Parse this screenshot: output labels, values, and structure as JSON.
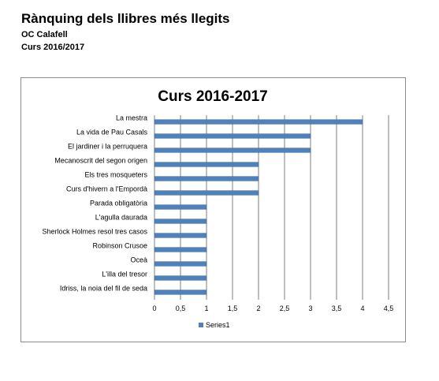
{
  "header": {
    "title": "Rànquing dels llibres més llegits",
    "line1": "OC Calafell",
    "line2": "Curs 2016/2017"
  },
  "colors": {
    "bar": "#4f81bd",
    "bar_edge": "#3a679e",
    "grid": "#7f7f7f"
  },
  "chart_data": {
    "type": "bar",
    "orientation": "horizontal",
    "title": "Curs 2016-2017",
    "categories": [
      "La mestra",
      "La vida de Pau Casals",
      "El jardiner i la perruquera",
      "Mecanoscrit  del segon origen",
      "Els tres mosqueters",
      "Curs d'hivern a l'Empordà",
      "Parada obligatòria",
      "L'agulla daurada",
      "Sherlock Holmes resol tres casos",
      "Robinson Crusoe",
      "Oceà",
      "L'illa del tresor",
      "Idriss, la noia del fil de seda"
    ],
    "series": [
      {
        "name": "Series1",
        "values": [
          4,
          3,
          3,
          2,
          2,
          2,
          1,
          1,
          1,
          1,
          1,
          1,
          1
        ]
      }
    ],
    "xlim": [
      0,
      4.5
    ],
    "xticks": [
      "0",
      "0,5",
      "1",
      "1,5",
      "2",
      "2,5",
      "3",
      "3,5",
      "4",
      "4,5"
    ],
    "grid": true,
    "legend": "bottom"
  }
}
